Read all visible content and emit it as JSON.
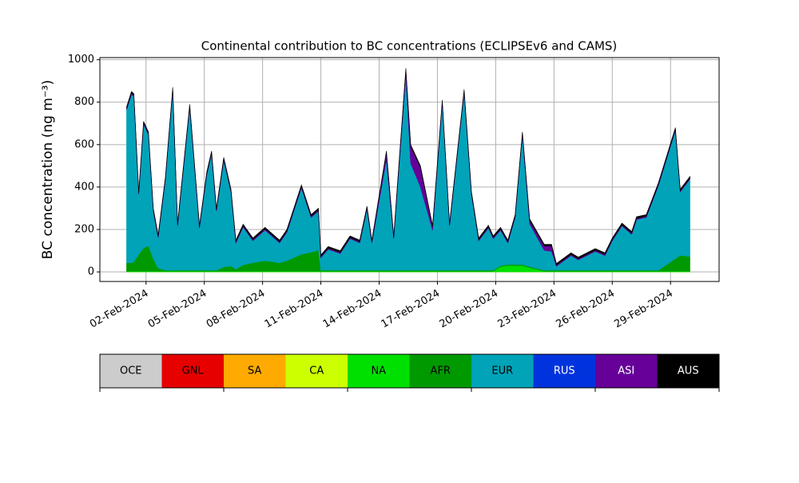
{
  "chart_data": {
    "type": "stacked_area",
    "title": "Continental contribution to BC concentrations (ECLIPSEv6 and CAMS)",
    "ylabel": "BC concentration (ng m⁻³)",
    "xlim": [
      "2024-01-30T15:00",
      "2024-03-02T12:00"
    ],
    "xticks": [
      {
        "value": "2024-02-02",
        "label": "02-Feb-2024"
      },
      {
        "value": "2024-02-05",
        "label": "05-Feb-2024"
      },
      {
        "value": "2024-02-08",
        "label": "08-Feb-2024"
      },
      {
        "value": "2024-02-11",
        "label": "11-Feb-2024"
      },
      {
        "value": "2024-02-14",
        "label": "14-Feb-2024"
      },
      {
        "value": "2024-02-17",
        "label": "17-Feb-2024"
      },
      {
        "value": "2024-02-20",
        "label": "20-Feb-2024"
      },
      {
        "value": "2024-02-23",
        "label": "23-Feb-2024"
      },
      {
        "value": "2024-02-26",
        "label": "26-Feb-2024"
      },
      {
        "value": "2024-02-29",
        "label": "29-Feb-2024"
      }
    ],
    "ylim": [
      -45,
      1010
    ],
    "yticks": [
      0,
      200,
      400,
      600,
      800,
      1000
    ],
    "grid": true,
    "x": [
      "2024-02-01T00:00",
      "2024-02-01T06:00",
      "2024-02-01T09:00",
      "2024-02-01T15:00",
      "2024-02-01T21:00",
      "2024-02-02T03:00",
      "2024-02-02T09:00",
      "2024-02-02T15:00",
      "2024-02-03T00:00",
      "2024-02-03T09:00",
      "2024-02-03T15:00",
      "2024-02-04T06:00",
      "2024-02-04T18:00",
      "2024-02-05T03:00",
      "2024-02-05T09:00",
      "2024-02-05T15:00",
      "2024-02-06T00:00",
      "2024-02-06T09:00",
      "2024-02-06T15:00",
      "2024-02-07T00:00",
      "2024-02-07T12:00",
      "2024-02-08T03:00",
      "2024-02-08T21:00",
      "2024-02-09T06:00",
      "2024-02-10T00:00",
      "2024-02-10T12:00",
      "2024-02-10T21:00",
      "2024-02-11T00:00",
      "2024-02-11T09:00",
      "2024-02-12T00:00",
      "2024-02-12T12:00",
      "2024-02-13T00:00",
      "2024-02-13T09:00",
      "2024-02-13T15:00",
      "2024-02-14T09:00",
      "2024-02-14T18:00",
      "2024-02-15T09:00",
      "2024-02-15T15:00",
      "2024-02-16T03:00",
      "2024-02-16T18:00",
      "2024-02-17T06:00",
      "2024-02-17T15:00",
      "2024-02-18T09:00",
      "2024-02-18T18:00",
      "2024-02-19T03:00",
      "2024-02-19T15:00",
      "2024-02-19T21:00",
      "2024-02-20T06:00",
      "2024-02-20T15:00",
      "2024-02-21T00:00",
      "2024-02-21T09:00",
      "2024-02-21T18:00",
      "2024-02-22T12:00",
      "2024-02-22T21:00",
      "2024-02-23T03:00",
      "2024-02-23T21:00",
      "2024-02-24T06:00",
      "2024-02-25T03:00",
      "2024-02-25T15:00",
      "2024-02-26T00:00",
      "2024-02-26T12:00",
      "2024-02-27T00:00",
      "2024-02-27T06:00",
      "2024-02-27T18:00",
      "2024-02-28T09:00",
      "2024-02-29T06:00",
      "2024-02-29T12:00",
      "2024-03-01T00:00"
    ],
    "series": [
      {
        "name": "OCE",
        "color": "#cccccc",
        "values": [
          0,
          0,
          0,
          0,
          0,
          0,
          0,
          0,
          0,
          0,
          0,
          0,
          0,
          0,
          0,
          0,
          0,
          0,
          0,
          0,
          0,
          0,
          0,
          0,
          0,
          0,
          0,
          0,
          0,
          0,
          0,
          0,
          0,
          0,
          0,
          0,
          0,
          0,
          0,
          0,
          0,
          0,
          0,
          0,
          0,
          0,
          0,
          0,
          0,
          0,
          0,
          0,
          0,
          0,
          0,
          0,
          0,
          0,
          0,
          0,
          0,
          0,
          0,
          0,
          0,
          0,
          0,
          0
        ]
      },
      {
        "name": "GNL",
        "color": "#e60000",
        "values": [
          0,
          0,
          0,
          0,
          0,
          0,
          0,
          0,
          0,
          0,
          0,
          0,
          0,
          0,
          0,
          0,
          0,
          0,
          0,
          0,
          0,
          0,
          0,
          0,
          0,
          0,
          0,
          0,
          0,
          0,
          0,
          0,
          0,
          0,
          0,
          0,
          0,
          0,
          0,
          0,
          0,
          0,
          0,
          0,
          0,
          0,
          0,
          0,
          0,
          0,
          0,
          0,
          0,
          0,
          0,
          0,
          0,
          0,
          0,
          0,
          0,
          0,
          0,
          0,
          0,
          0,
          0,
          0
        ]
      },
      {
        "name": "SA",
        "color": "#ffaa00",
        "values": [
          0,
          0,
          0,
          0,
          0,
          0,
          0,
          0,
          0,
          0,
          0,
          0,
          0,
          0,
          0,
          0,
          0,
          0,
          0,
          0,
          0,
          0,
          0,
          0,
          0,
          0,
          0,
          0,
          0,
          0,
          0,
          0,
          0,
          0,
          0,
          0,
          0,
          0,
          0,
          0,
          0,
          0,
          0,
          0,
          0,
          0,
          0,
          0,
          0,
          0,
          0,
          0,
          0,
          0,
          0,
          0,
          0,
          0,
          0,
          0,
          0,
          0,
          0,
          0,
          0,
          0,
          0,
          0
        ]
      },
      {
        "name": "CA",
        "color": "#ccff00",
        "values": [
          0,
          0,
          0,
          0,
          0,
          0,
          0,
          0,
          0,
          0,
          0,
          0,
          0,
          0,
          0,
          0,
          0,
          0,
          0,
          0,
          0,
          0,
          0,
          0,
          0,
          0,
          0,
          0,
          0,
          0,
          0,
          0,
          0,
          0,
          0,
          0,
          0,
          0,
          0,
          0,
          0,
          0,
          0,
          0,
          0,
          0,
          0,
          0,
          0,
          0,
          0,
          0,
          0,
          0,
          0,
          0,
          0,
          0,
          0,
          0,
          0,
          0,
          0,
          0,
          0,
          0,
          0,
          0
        ]
      },
      {
        "name": "NA",
        "color": "#00e000",
        "values": [
          3,
          3,
          3,
          3,
          3,
          3,
          3,
          3,
          3,
          3,
          3,
          3,
          3,
          3,
          3,
          3,
          3,
          3,
          3,
          3,
          3,
          3,
          3,
          3,
          3,
          3,
          3,
          3,
          3,
          3,
          3,
          3,
          3,
          3,
          3,
          3,
          3,
          3,
          3,
          3,
          3,
          3,
          3,
          3,
          3,
          3,
          3,
          25,
          30,
          30,
          30,
          20,
          3,
          3,
          3,
          3,
          3,
          3,
          3,
          3,
          3,
          3,
          3,
          3,
          3,
          3,
          3,
          3
        ]
      },
      {
        "name": "AFR",
        "color": "#009900",
        "values": [
          40,
          40,
          45,
          80,
          110,
          120,
          60,
          15,
          5,
          5,
          5,
          5,
          5,
          5,
          5,
          5,
          20,
          25,
          10,
          30,
          40,
          50,
          40,
          50,
          80,
          90,
          100,
          5,
          5,
          5,
          5,
          5,
          5,
          5,
          5,
          5,
          5,
          5,
          5,
          5,
          5,
          5,
          5,
          5,
          5,
          5,
          5,
          5,
          5,
          5,
          5,
          5,
          5,
          5,
          5,
          5,
          5,
          5,
          5,
          5,
          5,
          5,
          5,
          5,
          5,
          60,
          75,
          70
        ]
      },
      {
        "name": "EUR",
        "color": "#00a3b8",
        "values": [
          722,
          794,
          779,
          284,
          584,
          524,
          224,
          144,
          429,
          849,
          209,
          769,
          199,
          449,
          549,
          279,
          504,
          349,
          124,
          179,
          104,
          144,
          94,
          134,
          314,
          164,
          184,
          59,
          99,
          79,
          149,
          129,
          289,
          129,
          524,
          149,
          924,
          504,
          394,
          189,
          789,
          209,
          839,
          359,
          139,
          199,
          149,
          167,
          102,
          222,
          612,
          202,
          94,
          89,
          19,
          69,
          49,
          89,
          69,
          139,
          209,
          169,
          239,
          249,
          399,
          604,
          299,
          364
        ]
      },
      {
        "name": "RUS",
        "color": "#0033dd",
        "values": [
          0,
          0,
          0,
          0,
          0,
          0,
          0,
          0,
          0,
          0,
          0,
          0,
          0,
          0,
          0,
          0,
          0,
          0,
          0,
          0,
          0,
          0,
          0,
          0,
          0,
          0,
          0,
          0,
          0,
          0,
          0,
          0,
          0,
          0,
          0,
          0,
          0,
          0,
          0,
          0,
          0,
          0,
          0,
          0,
          0,
          0,
          0,
          0,
          0,
          0,
          0,
          0,
          0,
          0,
          0,
          0,
          0,
          0,
          0,
          0,
          0,
          0,
          0,
          0,
          0,
          0,
          0,
          0
        ]
      },
      {
        "name": "ASI",
        "color": "#660099",
        "values": [
          5,
          5,
          5,
          5,
          5,
          5,
          5,
          5,
          5,
          5,
          5,
          5,
          5,
          5,
          5,
          5,
          5,
          5,
          5,
          5,
          5,
          5,
          5,
          5,
          5,
          5,
          5,
          5,
          5,
          5,
          5,
          5,
          5,
          5,
          30,
          5,
          20,
          80,
          90,
          15,
          5,
          5,
          5,
          5,
          5,
          5,
          5,
          5,
          5,
          5,
          5,
          15,
          20,
          25,
          5,
          5,
          5,
          5,
          5,
          5,
          5,
          5,
          5,
          5,
          5,
          5,
          5,
          5
        ]
      },
      {
        "name": "AUS",
        "color": "#000000",
        "values": [
          8,
          8,
          8,
          8,
          8,
          8,
          8,
          8,
          8,
          8,
          8,
          8,
          8,
          8,
          8,
          8,
          8,
          8,
          8,
          8,
          8,
          8,
          8,
          8,
          8,
          8,
          8,
          8,
          8,
          8,
          8,
          8,
          8,
          8,
          8,
          8,
          8,
          8,
          8,
          8,
          8,
          8,
          8,
          8,
          8,
          8,
          8,
          8,
          8,
          8,
          8,
          8,
          8,
          8,
          8,
          8,
          8,
          8,
          8,
          8,
          8,
          8,
          8,
          8,
          8,
          8,
          8,
          8
        ]
      }
    ]
  }
}
